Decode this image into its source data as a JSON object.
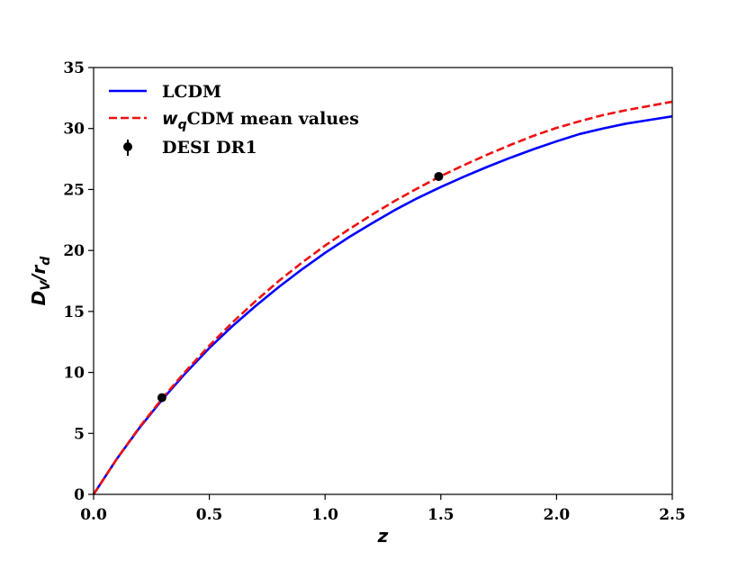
{
  "chart_data": {
    "type": "line",
    "xlabel": "z",
    "ylabel_main": "D",
    "ylabel_sub1": "V",
    "ylabel_sep": "/",
    "ylabel_main2": "r",
    "ylabel_sub2": "d",
    "xlim": [
      0.0,
      2.5
    ],
    "ylim": [
      0,
      35
    ],
    "xticks": [
      "0.0",
      "0.5",
      "1.0",
      "1.5",
      "2.0",
      "2.5"
    ],
    "xtick_values": [
      0.0,
      0.5,
      1.0,
      1.5,
      2.0,
      2.5
    ],
    "yticks": [
      "0",
      "5",
      "10",
      "15",
      "20",
      "25",
      "30",
      "35"
    ],
    "ytick_values": [
      0,
      5,
      10,
      15,
      20,
      25,
      30,
      35
    ],
    "grid": false,
    "legend_position": "top-left",
    "series": [
      {
        "name": "LCDM",
        "style": "solid",
        "color": "#0000ff",
        "x": [
          0.0,
          0.1,
          0.2,
          0.3,
          0.4,
          0.5,
          0.6,
          0.7,
          0.8,
          0.9,
          1.0,
          1.1,
          1.2,
          1.3,
          1.4,
          1.5,
          1.6,
          1.7,
          1.8,
          1.9,
          2.0,
          2.1,
          2.2,
          2.3,
          2.4,
          2.5
        ],
        "y": [
          0.0,
          2.9,
          5.5,
          7.85,
          10.0,
          12.0,
          13.8,
          15.45,
          17.0,
          18.45,
          19.8,
          21.05,
          22.2,
          23.3,
          24.3,
          25.2,
          26.05,
          26.85,
          27.6,
          28.3,
          28.95,
          29.55,
          30.0,
          30.4,
          30.7,
          31.0
        ]
      },
      {
        "name_prefix": "w",
        "name_sub": "q",
        "name": "CDM mean values",
        "style": "dashed",
        "color": "#ee1111",
        "x": [
          0.0,
          0.1,
          0.2,
          0.3,
          0.4,
          0.5,
          0.6,
          0.7,
          0.8,
          0.9,
          1.0,
          1.1,
          1.2,
          1.3,
          1.4,
          1.5,
          1.6,
          1.7,
          1.8,
          1.9,
          2.0,
          2.1,
          2.2,
          2.3,
          2.4,
          2.5
        ],
        "y": [
          0.0,
          2.9,
          5.55,
          7.95,
          10.15,
          12.2,
          14.1,
          15.85,
          17.5,
          19.0,
          20.4,
          21.7,
          22.9,
          24.05,
          25.1,
          26.1,
          27.0,
          27.85,
          28.65,
          29.4,
          30.05,
          30.6,
          31.1,
          31.5,
          31.85,
          32.2
        ]
      },
      {
        "name": "DESI DR1",
        "style": "errorbar",
        "color": "#000000",
        "x": [
          0.295,
          1.491
        ],
        "y": [
          7.93,
          26.07
        ]
      }
    ]
  }
}
